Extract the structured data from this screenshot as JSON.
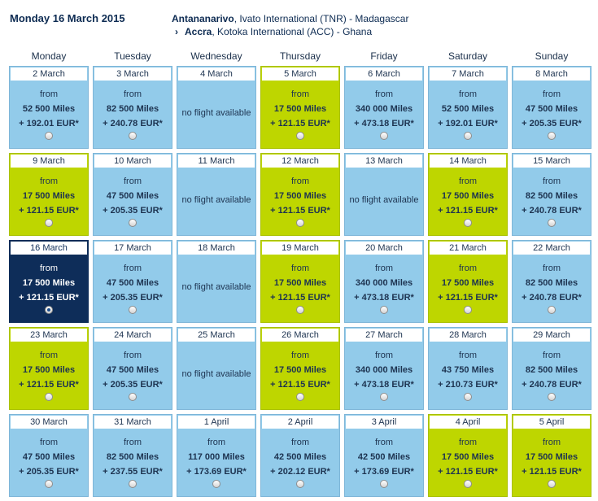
{
  "header": {
    "date": "Monday 16 March 2015",
    "origin": {
      "city": "Antananarivo",
      "rest": ", Ivato International (TNR) - Madagascar"
    },
    "destination": {
      "city": "Accra",
      "rest": ", Kotoka International (ACC) - Ghana"
    }
  },
  "weekdays": [
    "Monday",
    "Tuesday",
    "Wednesday",
    "Thursday",
    "Friday",
    "Saturday",
    "Sunday"
  ],
  "colors": {
    "available": "#92cbea",
    "lowest": "#bed600",
    "selected": "#0e2d59"
  },
  "weeks": [
    [
      {
        "date": "2 March",
        "from": "from",
        "miles": "52 500 Miles",
        "price": "+ 192.01 EUR*",
        "style": "blue"
      },
      {
        "date": "3 March",
        "from": "from",
        "miles": "82 500 Miles",
        "price": "+ 240.78 EUR*",
        "style": "blue"
      },
      {
        "date": "4 March",
        "noflight": "no flight available",
        "style": "blue"
      },
      {
        "date": "5 March",
        "from": "from",
        "miles": "17 500 Miles",
        "price": "+ 121.15 EUR*",
        "style": "green"
      },
      {
        "date": "6 March",
        "from": "from",
        "miles": "340 000 Miles",
        "price": "+ 473.18 EUR*",
        "style": "blue"
      },
      {
        "date": "7 March",
        "from": "from",
        "miles": "52 500 Miles",
        "price": "+ 192.01 EUR*",
        "style": "blue"
      },
      {
        "date": "8 March",
        "from": "from",
        "miles": "47 500 Miles",
        "price": "+ 205.35 EUR*",
        "style": "blue"
      }
    ],
    [
      {
        "date": "9 March",
        "from": "from",
        "miles": "17 500 Miles",
        "price": "+ 121.15 EUR*",
        "style": "green"
      },
      {
        "date": "10 March",
        "from": "from",
        "miles": "47 500 Miles",
        "price": "+ 205.35 EUR*",
        "style": "blue"
      },
      {
        "date": "11 March",
        "noflight": "no flight available",
        "style": "blue"
      },
      {
        "date": "12 March",
        "from": "from",
        "miles": "17 500 Miles",
        "price": "+ 121.15 EUR*",
        "style": "green"
      },
      {
        "date": "13 March",
        "noflight": "no flight available",
        "style": "blue"
      },
      {
        "date": "14 March",
        "from": "from",
        "miles": "17 500 Miles",
        "price": "+ 121.15 EUR*",
        "style": "green"
      },
      {
        "date": "15 March",
        "from": "from",
        "miles": "82 500 Miles",
        "price": "+ 240.78 EUR*",
        "style": "blue"
      }
    ],
    [
      {
        "date": "16 March",
        "from": "from",
        "miles": "17 500 Miles",
        "price": "+ 121.15 EUR*",
        "style": "selected",
        "checked": true
      },
      {
        "date": "17 March",
        "from": "from",
        "miles": "47 500 Miles",
        "price": "+ 205.35 EUR*",
        "style": "blue"
      },
      {
        "date": "18 March",
        "noflight": "no flight available",
        "style": "blue"
      },
      {
        "date": "19 March",
        "from": "from",
        "miles": "17 500 Miles",
        "price": "+ 121.15 EUR*",
        "style": "green"
      },
      {
        "date": "20 March",
        "from": "from",
        "miles": "340 000 Miles",
        "price": "+ 473.18 EUR*",
        "style": "blue"
      },
      {
        "date": "21 March",
        "from": "from",
        "miles": "17 500 Miles",
        "price": "+ 121.15 EUR*",
        "style": "green"
      },
      {
        "date": "22 March",
        "from": "from",
        "miles": "82 500 Miles",
        "price": "+ 240.78 EUR*",
        "style": "blue"
      }
    ],
    [
      {
        "date": "23 March",
        "from": "from",
        "miles": "17 500 Miles",
        "price": "+ 121.15 EUR*",
        "style": "green"
      },
      {
        "date": "24 March",
        "from": "from",
        "miles": "47 500 Miles",
        "price": "+ 205.35 EUR*",
        "style": "blue"
      },
      {
        "date": "25 March",
        "noflight": "no flight available",
        "style": "blue"
      },
      {
        "date": "26 March",
        "from": "from",
        "miles": "17 500 Miles",
        "price": "+ 121.15 EUR*",
        "style": "green"
      },
      {
        "date": "27 March",
        "from": "from",
        "miles": "340 000 Miles",
        "price": "+ 473.18 EUR*",
        "style": "blue"
      },
      {
        "date": "28 March",
        "from": "from",
        "miles": "43 750 Miles",
        "price": "+ 210.73 EUR*",
        "style": "blue"
      },
      {
        "date": "29 March",
        "from": "from",
        "miles": "82 500 Miles",
        "price": "+ 240.78 EUR*",
        "style": "blue"
      }
    ],
    [
      {
        "date": "30 March",
        "from": "from",
        "miles": "47 500 Miles",
        "price": "+ 205.35 EUR*",
        "style": "blue"
      },
      {
        "date": "31 March",
        "from": "from",
        "miles": "82 500 Miles",
        "price": "+ 237.55 EUR*",
        "style": "blue"
      },
      {
        "date": "1 April",
        "from": "from",
        "miles": "117 000 Miles",
        "price": "+ 173.69 EUR*",
        "style": "blue"
      },
      {
        "date": "2 April",
        "from": "from",
        "miles": "42 500 Miles",
        "price": "+ 202.12 EUR*",
        "style": "blue"
      },
      {
        "date": "3 April",
        "from": "from",
        "miles": "42 500 Miles",
        "price": "+ 173.69 EUR*",
        "style": "blue"
      },
      {
        "date": "4 April",
        "from": "from",
        "miles": "17 500 Miles",
        "price": "+ 121.15 EUR*",
        "style": "green"
      },
      {
        "date": "5 April",
        "from": "from",
        "miles": "17 500 Miles",
        "price": "+ 121.15 EUR*",
        "style": "green"
      }
    ]
  ]
}
